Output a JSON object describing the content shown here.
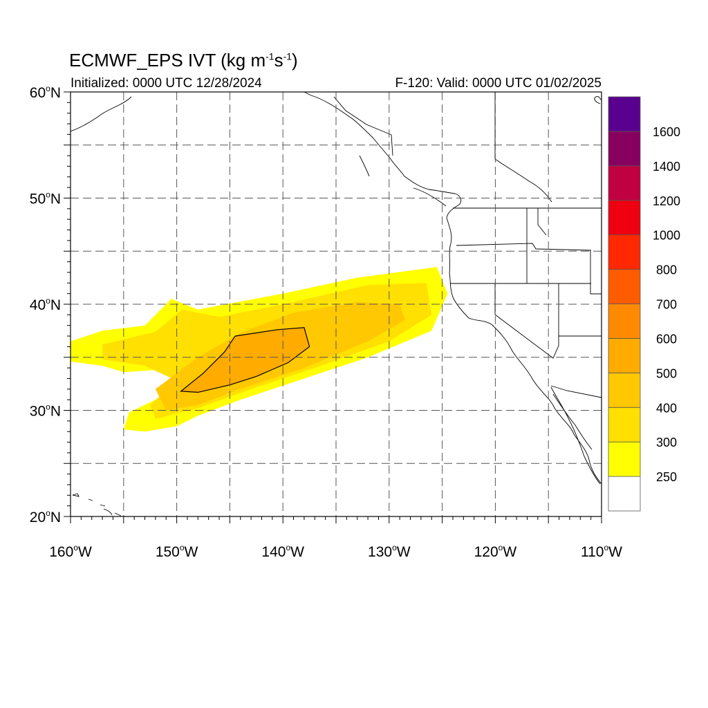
{
  "title": {
    "main": "ECMWF_EPS IVT (kg m",
    "sup1": "-1",
    "mid": "s",
    "sup2": "-1",
    "end": ")"
  },
  "initialized": "Initialized: 0000 UTC 12/28/2024",
  "valid": "F-120: Valid: 0000 UTC 01/02/2025",
  "map": {
    "lon_range": [
      -160,
      -110
    ],
    "lat_range": [
      20,
      60
    ],
    "gridlines": "dashed",
    "grid_spacing_deg": 5,
    "lat_labels": [
      {
        "lat": 60,
        "num": "60",
        "hemi": "N"
      },
      {
        "lat": 50,
        "num": "50",
        "hemi": "N"
      },
      {
        "lat": 40,
        "num": "40",
        "hemi": "N"
      },
      {
        "lat": 30,
        "num": "30",
        "hemi": "N"
      },
      {
        "lat": 20,
        "num": "20",
        "hemi": "N"
      }
    ],
    "lon_labels": [
      {
        "lon": -160,
        "num": "160",
        "hemi": "W"
      },
      {
        "lon": -150,
        "num": "150",
        "hemi": "W"
      },
      {
        "lon": -140,
        "num": "140",
        "hemi": "W"
      },
      {
        "lon": -130,
        "num": "130",
        "hemi": "W"
      },
      {
        "lon": -120,
        "num": "120",
        "hemi": "W"
      },
      {
        "lon": -110,
        "num": "110",
        "hemi": "W"
      }
    ]
  },
  "colorbar": {
    "levels": [
      "250",
      "300",
      "400",
      "500",
      "600",
      "700",
      "800",
      "1000",
      "1200",
      "1400",
      "1600"
    ],
    "colors": [
      "#ffffff",
      "#ffff00",
      "#ffe000",
      "#ffc800",
      "#ffab00",
      "#ff8a00",
      "#ff5c00",
      "#ff2800",
      "#ee0010",
      "#c00040",
      "#870060",
      "#5a008f"
    ]
  },
  "ivt_field": {
    "units": "kg m-1 s-1",
    "regions": [
      {
        "level": "250-300",
        "color": "#ffff00",
        "polygon": [
          [
            -160,
            36.5
          ],
          [
            -157,
            37.5
          ],
          [
            -153,
            38
          ],
          [
            -150.5,
            40.5
          ],
          [
            -148,
            39.5
          ],
          [
            -140,
            41
          ],
          [
            -133,
            42.5
          ],
          [
            -125.5,
            43.5
          ],
          [
            -124.5,
            41
          ],
          [
            -126,
            37.5
          ],
          [
            -132,
            35
          ],
          [
            -138,
            33
          ],
          [
            -144,
            31
          ],
          [
            -148,
            29.5
          ],
          [
            -150,
            28.5
          ],
          [
            -153,
            28
          ],
          [
            -155,
            28.2
          ],
          [
            -154.5,
            29.8
          ],
          [
            -151,
            31.5
          ],
          [
            -150.5,
            33.2
          ],
          [
            -152,
            33.8
          ],
          [
            -155,
            33.6
          ],
          [
            -157,
            34.2
          ],
          [
            -160,
            34.6
          ]
        ]
      },
      {
        "level": "300-400",
        "color": "#ffe000",
        "polygon": [
          [
            -157,
            36.2
          ],
          [
            -152,
            37.4
          ],
          [
            -149.5,
            39.5
          ],
          [
            -146,
            38.8
          ],
          [
            -139,
            40.2
          ],
          [
            -132,
            41.8
          ],
          [
            -126.5,
            42
          ],
          [
            -126,
            39
          ],
          [
            -130,
            36.5
          ],
          [
            -137,
            34
          ],
          [
            -143,
            32
          ],
          [
            -148,
            30.2
          ],
          [
            -152,
            29.2
          ],
          [
            -152.5,
            30.5
          ],
          [
            -150,
            32.8
          ],
          [
            -153,
            34.2
          ],
          [
            -157,
            34.8
          ]
        ]
      },
      {
        "level": "400-500",
        "color": "#ffc800",
        "polygon": [
          [
            -152,
            32
          ],
          [
            -148,
            35
          ],
          [
            -144,
            37.3
          ],
          [
            -139,
            39.2
          ],
          [
            -133,
            40.2
          ],
          [
            -129,
            40
          ],
          [
            -128.5,
            38.5
          ],
          [
            -132,
            36.5
          ],
          [
            -138,
            34
          ],
          [
            -144,
            32
          ],
          [
            -148,
            30.5
          ],
          [
            -151,
            30
          ]
        ]
      },
      {
        "level": "500-600",
        "color": "#ffab00",
        "polygon": [
          [
            -149.6,
            31.8
          ],
          [
            -147.5,
            33.5
          ],
          [
            -145.5,
            35.5
          ],
          [
            -144.5,
            37
          ],
          [
            -140.5,
            37.6
          ],
          [
            -138,
            37.8
          ],
          [
            -137.5,
            36
          ],
          [
            -139.5,
            34.5
          ],
          [
            -142.5,
            33.2
          ],
          [
            -145,
            32.4
          ],
          [
            -148,
            31.7
          ]
        ]
      }
    ],
    "contour_level": "500"
  }
}
